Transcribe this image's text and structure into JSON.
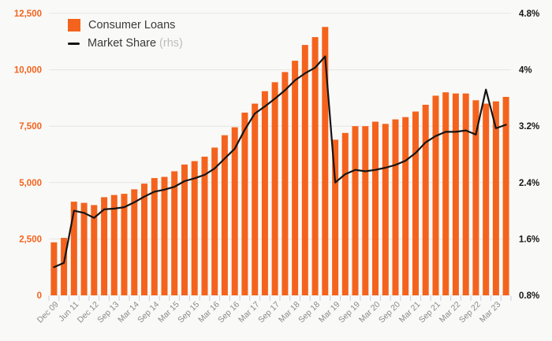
{
  "chart_data": {
    "type": "combo-bar-line",
    "grid_on": true,
    "legend_position": "top-left-inside",
    "colors": {
      "bar": "#f4631d",
      "line": "#141414",
      "grid": "#e6e6e3",
      "tick": "#c5cfe6",
      "x_label": "#8a8a8a",
      "background": "#f9f9f7"
    },
    "x_labels": [
      "Dec 09",
      "Jun 11",
      "Dec 12",
      "Sep 13",
      "Mar 14",
      "Sep 14",
      "Mar 15",
      "Sep 15",
      "Mar 16",
      "Sep 16",
      "Mar 17",
      "Sep 17",
      "Mar 18",
      "Sep 18",
      "Mar 19",
      "Sep 19",
      "Mar 20",
      "Sep 20",
      "Mar 21",
      "Sep 21",
      "Mar 22",
      "Sep 22",
      "Mar 23"
    ],
    "label_every": 2,
    "left_axis": {
      "min": 0,
      "max": 12500,
      "step": 2500,
      "tick_labels": [
        "0",
        "2,500",
        "5,000",
        "7,500",
        "10,000",
        "12,500"
      ],
      "color": "#f4631d"
    },
    "right_axis": {
      "min": 0.8,
      "max": 4.8,
      "step": 0.8,
      "tick_labels": [
        "0.8%",
        "1.6%",
        "2.4%",
        "3.2%",
        "4%",
        "4.8%"
      ],
      "color": "#161616"
    },
    "series": [
      {
        "name": "Consumer Loans",
        "type": "bar",
        "axis": "left",
        "color": "#f4631d",
        "values": [
          2350,
          2550,
          4150,
          4100,
          4000,
          4350,
          4450,
          4500,
          4700,
          4950,
          5200,
          5250,
          5500,
          5800,
          5950,
          6150,
          6550,
          7100,
          7450,
          8100,
          8500,
          9050,
          9450,
          9900,
          10400,
          11100,
          11450,
          11900,
          6900,
          7200,
          7500,
          7500,
          7700,
          7600,
          7800,
          7900,
          8150,
          8450,
          8850,
          9000,
          8950,
          8950,
          8650,
          8500,
          8600,
          8800
        ]
      },
      {
        "name": "Market Share",
        "note": "(rhs)",
        "type": "line",
        "axis": "right",
        "color": "#141414",
        "values": [
          1.2,
          1.26,
          2.0,
          1.97,
          1.9,
          2.02,
          2.03,
          2.05,
          2.12,
          2.2,
          2.27,
          2.3,
          2.34,
          2.42,
          2.46,
          2.51,
          2.6,
          2.74,
          2.88,
          3.15,
          3.38,
          3.48,
          3.59,
          3.71,
          3.85,
          3.95,
          4.03,
          4.19,
          2.4,
          2.52,
          2.58,
          2.56,
          2.58,
          2.61,
          2.65,
          2.71,
          2.82,
          2.97,
          3.06,
          3.12,
          3.12,
          3.14,
          3.08,
          3.72,
          3.17,
          3.22
        ]
      }
    ]
  }
}
